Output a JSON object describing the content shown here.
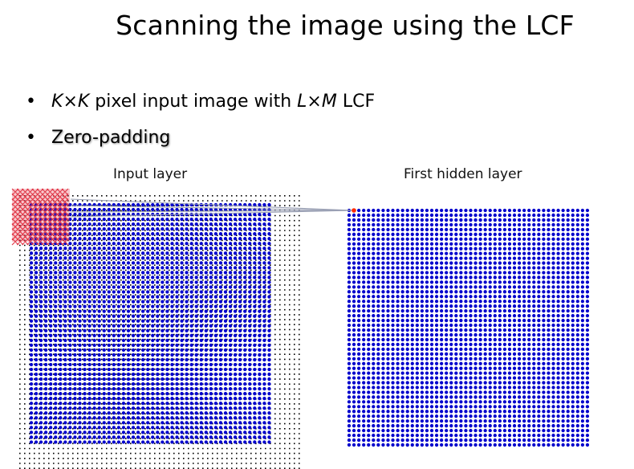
{
  "slide": {
    "title": "Scanning the image using the LCF"
  },
  "bullets": [
    {
      "dot": "•",
      "k1": "K",
      "times1": "×",
      "k2": "K",
      "mid": " pixel input image with ",
      "l": "L",
      "times2": "×",
      "m": "M",
      "end": " LCF"
    },
    {
      "dot": "•",
      "text": "Zero-padding"
    }
  ],
  "labels": {
    "input_layer": "Input layer",
    "first_hidden_layer": "First hidden layer"
  },
  "colors": {
    "neuron": "#0000cc",
    "padding_dot": "#000000",
    "filter": "#e23a4a",
    "active_hidden": "#ff2a00",
    "connection": "#9aa0b4"
  }
}
